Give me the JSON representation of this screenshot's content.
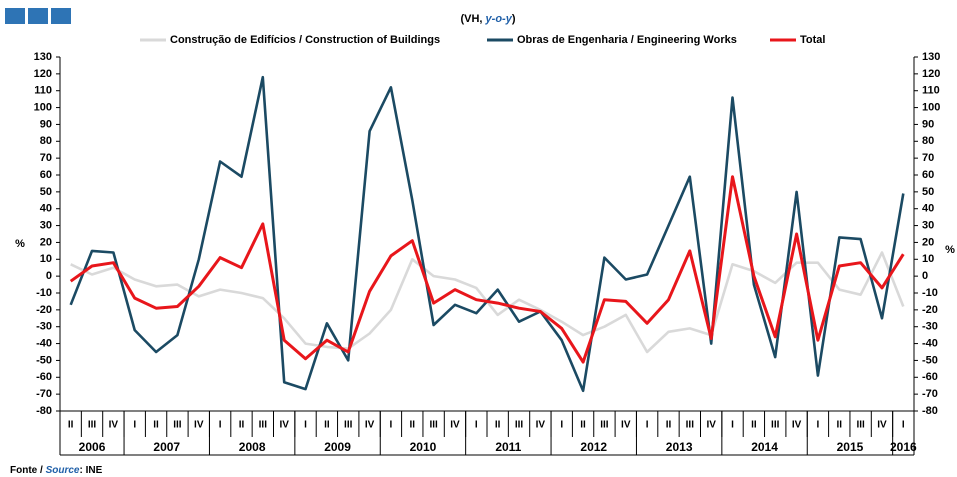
{
  "chart_data": {
    "type": "line",
    "subtitle": "(VH, ",
    "subtitle_em": "y-o-y",
    "subtitle_end": ")",
    "ylabel": "%",
    "y2label": "%",
    "categories": [
      "II",
      "III",
      "IV",
      "I",
      "II",
      "III",
      "IV",
      "I",
      "II",
      "III",
      "IV",
      "I",
      "II",
      "III",
      "IV",
      "I",
      "II",
      "III",
      "IV",
      "I",
      "II",
      "III",
      "IV",
      "I",
      "II",
      "III",
      "IV",
      "I",
      "II",
      "III",
      "IV",
      "I",
      "II",
      "III",
      "IV",
      "I",
      "II",
      "III",
      "IV",
      "I"
    ],
    "years": [
      "2006",
      "2007",
      "2008",
      "2009",
      "2010",
      "2011",
      "2012",
      "2013",
      "2014",
      "2015",
      "2016"
    ],
    "series": [
      {
        "name": "Construção de Edifícios / Construction of Buildings",
        "color": "#d9d9d9",
        "values": [
          7,
          1,
          5,
          -2,
          -6,
          -5,
          -12,
          -8,
          -10,
          -13,
          -25,
          -40,
          -42,
          -43,
          -34,
          -20,
          10,
          0,
          -2,
          -7,
          -23,
          -14,
          -20,
          -27,
          -35,
          -30,
          -23,
          -45,
          -33,
          -31,
          -35,
          7,
          3,
          -4,
          8,
          8,
          -8,
          -11,
          14,
          -18
        ]
      },
      {
        "name": "Obras de Engenharia / Engineering Works",
        "color": "#1b4a63",
        "values": [
          -17,
          15,
          14,
          -32,
          -45,
          -35,
          10,
          68,
          59,
          118,
          -63,
          -67,
          -28,
          -50,
          86,
          112,
          45,
          -29,
          -17,
          -22,
          -8,
          -27,
          -21,
          -38,
          -68,
          11,
          -2,
          1,
          30,
          59,
          -40,
          106,
          -5,
          -48,
          50,
          -59,
          23,
          22,
          -25,
          49
        ]
      },
      {
        "name": "Total",
        "color": "#e8161b",
        "values": [
          -3,
          6,
          8,
          -13,
          -19,
          -18,
          -6,
          11,
          5,
          31,
          -38,
          -49,
          -38,
          -45,
          -9,
          12,
          21,
          -16,
          -8,
          -14,
          -16,
          -19,
          -21,
          -31,
          -51,
          -14,
          -15,
          -28,
          -14,
          15,
          -37,
          59,
          0,
          -36,
          25,
          -38,
          6,
          8,
          -7,
          13
        ]
      }
    ],
    "ylim": [
      -80,
      130
    ],
    "yticks": [
      -80,
      -70,
      -60,
      -50,
      -40,
      -30,
      -20,
      -10,
      0,
      10,
      20,
      30,
      40,
      50,
      60,
      70,
      80,
      90,
      100,
      110,
      120,
      130
    ],
    "y2lim": [
      -80,
      130
    ],
    "y2ticks": [
      -80,
      -70,
      -60,
      -50,
      -40,
      -30,
      -20,
      -10,
      0,
      10,
      20,
      30,
      40,
      50,
      60,
      70,
      80,
      90,
      100,
      110,
      120,
      130
    ],
    "grid": false,
    "source_prefix": "Fonte / ",
    "source_em": "Source",
    "source_end": ": INE"
  }
}
